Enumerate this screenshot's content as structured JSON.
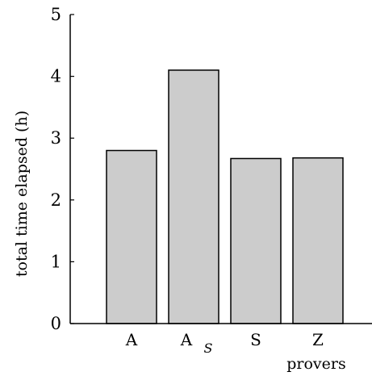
{
  "chart_data": {
    "type": "bar",
    "categories": [
      "A",
      "A_S",
      "S",
      "Z"
    ],
    "category_labels": [
      {
        "main": "A",
        "sub": ""
      },
      {
        "main": "A",
        "sub": "S"
      },
      {
        "main": "S",
        "sub": ""
      },
      {
        "main": "Z",
        "sub": ""
      }
    ],
    "values": [
      2.8,
      4.1,
      2.67,
      2.68
    ],
    "title": "",
    "xlabel": "provers",
    "ylabel": "total time elapsed (h)",
    "ylim": [
      0,
      5
    ],
    "yticks": [
      "0",
      "1",
      "2",
      "3",
      "4",
      "5"
    ],
    "bar_color": "#cccccc",
    "edge_color": "#000000",
    "grid": false,
    "legend": "none"
  }
}
